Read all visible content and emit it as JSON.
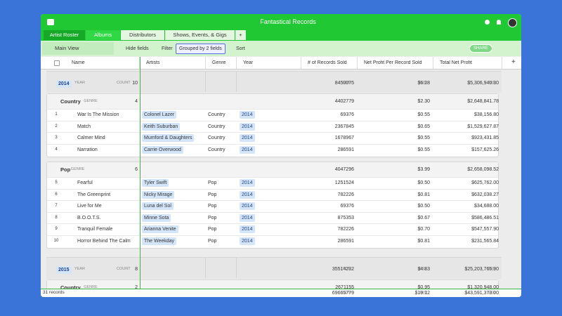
{
  "header": {
    "title": "Fantastical Records",
    "add_column": "+"
  },
  "tabs": [
    "Artist Roster",
    "Albums",
    "Distributors",
    "Shows, Events, & Gigs",
    "+"
  ],
  "toolbar": {
    "view": "Main View",
    "hide_fields": "Hide fields",
    "filter": "Filter",
    "grouped": "Grouped by 2 fields",
    "sort": "Sort",
    "share": "SHARE"
  },
  "columns": [
    "Name",
    "Artists",
    "Genre",
    "Year",
    "# of Records Sold",
    "Net Profit Per Record Sold",
    "Total Net Profit"
  ],
  "groups": [
    {
      "value": "2014",
      "field": "YEAR",
      "count_label": "COUNT",
      "count": "10",
      "sum_label": "SUM",
      "sums": [
        "8450075",
        "$6.28",
        "$5,306,940.30"
      ],
      "subgroups": [
        {
          "value": "Country",
          "field": "GENRE",
          "count": "4",
          "sums": [
            "4402779",
            "$2.30",
            "$2,648,841.78"
          ],
          "rows": [
            [
              "1",
              "War Is The Mission",
              "Colonel Lazer",
              "Country",
              "2014",
              "69376",
              "$0.55",
              "$38,156.80"
            ],
            [
              "2",
              "Match",
              "Keith Suburban",
              "Country",
              "2014",
              "2367845",
              "$0.65",
              "$1,529,627.87"
            ],
            [
              "3",
              "Calmer Mind",
              "Mumford & Daughters",
              "Country",
              "2014",
              "1678967",
              "$0.55",
              "$923,431.85"
            ],
            [
              "4",
              "Narration",
              "Carrie Overwood",
              "Country",
              "2014",
              "286591",
              "$0.55",
              "$157,625.26"
            ]
          ]
        },
        {
          "value": "Pop",
          "field": "GENRE",
          "count": "6",
          "sums": [
            "4047296",
            "$3.99",
            "$2,658,098.52"
          ],
          "rows": [
            [
              "5",
              "Fearful",
              "Tyler Swift",
              "Pop",
              "2014",
              "1251524",
              "$0.50",
              "$625,762.00"
            ],
            [
              "6",
              "The Greenprint",
              "Nicky Mirage",
              "Pop",
              "2014",
              "782226",
              "$0.81",
              "$632,038.27"
            ],
            [
              "7",
              "Live for Me",
              "Luna del Sol",
              "Pop",
              "2014",
              "69376",
              "$0.50",
              "$34,688.00"
            ],
            [
              "8",
              "B.O.O.T.S.",
              "Minne Sota",
              "Pop",
              "2014",
              "875353",
              "$0.67",
              "$586,486.51"
            ],
            [
              "9",
              "Tranquil Female",
              "Arianna Venite",
              "Pop",
              "2014",
              "782226",
              "$0.70",
              "$547,557.90"
            ],
            [
              "10",
              "Horror Behind The Calm",
              "The Weekday",
              "Pop",
              "2014",
              "286591",
              "$0.81",
              "$231,565.84"
            ]
          ]
        }
      ]
    },
    {
      "value": "2015",
      "field": "YEAR",
      "count_label": "COUNT",
      "count": "8",
      "sum_label": "SUM",
      "sums": [
        "35514232",
        "$4.83",
        "$25,203,765.90"
      ],
      "subgroups": [
        {
          "value": "Country",
          "field": "GENRE",
          "count": "2",
          "sums": [
            "2671155",
            "$0.95",
            "$1,320,948.00"
          ],
          "rows": []
        }
      ]
    }
  ],
  "footer": {
    "records": "31 records",
    "sum_label": "SUM",
    "sums": [
      "69665779",
      "$19.12",
      "$43,591,373.00"
    ]
  }
}
